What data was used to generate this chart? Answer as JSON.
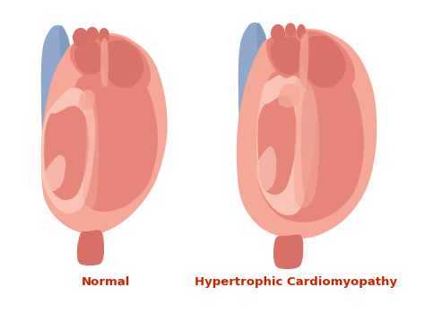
{
  "background_color": "#ffffff",
  "heart_outer": "#f5a898",
  "heart_mid": "#e8857a",
  "heart_dark": "#d06860",
  "heart_light": "#f9c4b8",
  "vessel_blue": "#8fa8cc",
  "vessel_blue_dark": "#7090b8",
  "vessel_red": "#d87068",
  "label_normal": "Normal",
  "label_hcm": "Hypertrophic Cardiomyopathy",
  "label_color": "#cc2200",
  "label_fontsize": 9.5,
  "label_fontweight": "bold",
  "figsize": [
    4.74,
    3.59
  ],
  "dpi": 100
}
